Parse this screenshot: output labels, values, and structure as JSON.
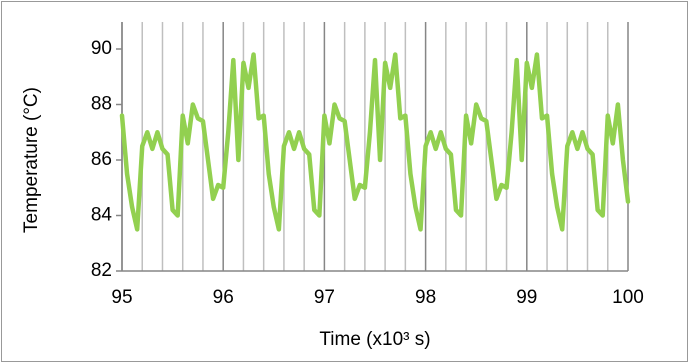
{
  "chart_data": {
    "type": "line",
    "x_label": "Time (x10³ s)",
    "y_label": "Temperature (°C)",
    "x": [
      95.0,
      95.05,
      95.1,
      95.15,
      95.2,
      95.25,
      95.3,
      95.35,
      95.4,
      95.45,
      95.5,
      95.55,
      95.6,
      95.65,
      95.7,
      95.75,
      95.8,
      95.85,
      95.9,
      95.95,
      96.0,
      96.05,
      96.1,
      96.15,
      96.2,
      96.25,
      96.3,
      96.35,
      96.4,
      96.45,
      96.5,
      96.55,
      96.6,
      96.65,
      96.7,
      96.75,
      96.8,
      96.85,
      96.9,
      96.95,
      97.0,
      97.05,
      97.1,
      97.15,
      97.2,
      97.25,
      97.3,
      97.35,
      97.4,
      97.45,
      97.5,
      97.55,
      97.6,
      97.65,
      97.7,
      97.75,
      97.8,
      97.85,
      97.9,
      97.95,
      98.0,
      98.05,
      98.1,
      98.15,
      98.2,
      98.25,
      98.3,
      98.35,
      98.4,
      98.45,
      98.5,
      98.55,
      98.6,
      98.65,
      98.7,
      98.75,
      98.8,
      98.85,
      98.9,
      98.95,
      99.0,
      99.05,
      99.1,
      99.15,
      99.2,
      99.25,
      99.3,
      99.35,
      99.4,
      99.45,
      99.5,
      99.55,
      99.6,
      99.65,
      99.7,
      99.75,
      99.8,
      99.85,
      99.9,
      99.95,
      100.0
    ],
    "series": [
      {
        "color": "#92d050",
        "values": [
          87.6,
          85.5,
          84.3,
          83.5,
          86.5,
          87.0,
          86.4,
          87.0,
          86.4,
          86.2,
          84.2,
          84.0,
          87.6,
          86.6,
          88.0,
          87.5,
          87.4,
          86.0,
          84.6,
          85.1,
          85.0,
          87.0,
          89.6,
          86.0,
          89.5,
          88.6,
          89.8,
          87.5,
          87.6,
          85.5,
          84.3,
          83.5,
          86.5,
          87.0,
          86.4,
          87.0,
          86.4,
          86.2,
          84.2,
          84.0,
          87.6,
          86.6,
          88.0,
          87.5,
          87.4,
          86.0,
          84.6,
          85.1,
          85.0,
          87.0,
          89.6,
          86.0,
          89.5,
          88.6,
          89.8,
          87.5,
          87.6,
          85.5,
          84.3,
          83.5,
          86.5,
          87.0,
          86.4,
          87.0,
          86.4,
          86.2,
          84.2,
          84.0,
          87.6,
          86.6,
          88.0,
          87.5,
          87.4,
          86.0,
          84.6,
          85.1,
          85.0,
          87.0,
          89.6,
          86.0,
          89.5,
          88.6,
          89.8,
          87.5,
          87.6,
          85.5,
          84.3,
          83.5,
          86.5,
          87.0,
          86.4,
          87.0,
          86.4,
          86.2,
          84.2,
          84.0,
          87.6,
          86.6,
          88.0,
          86.0,
          84.5
        ]
      }
    ],
    "xlim": [
      95,
      100
    ],
    "xticks": [
      95,
      96,
      97,
      98,
      99,
      100
    ],
    "ylim": [
      82,
      90
    ],
    "yticks": [
      82,
      84,
      86,
      88,
      90
    ],
    "grid": true
  }
}
